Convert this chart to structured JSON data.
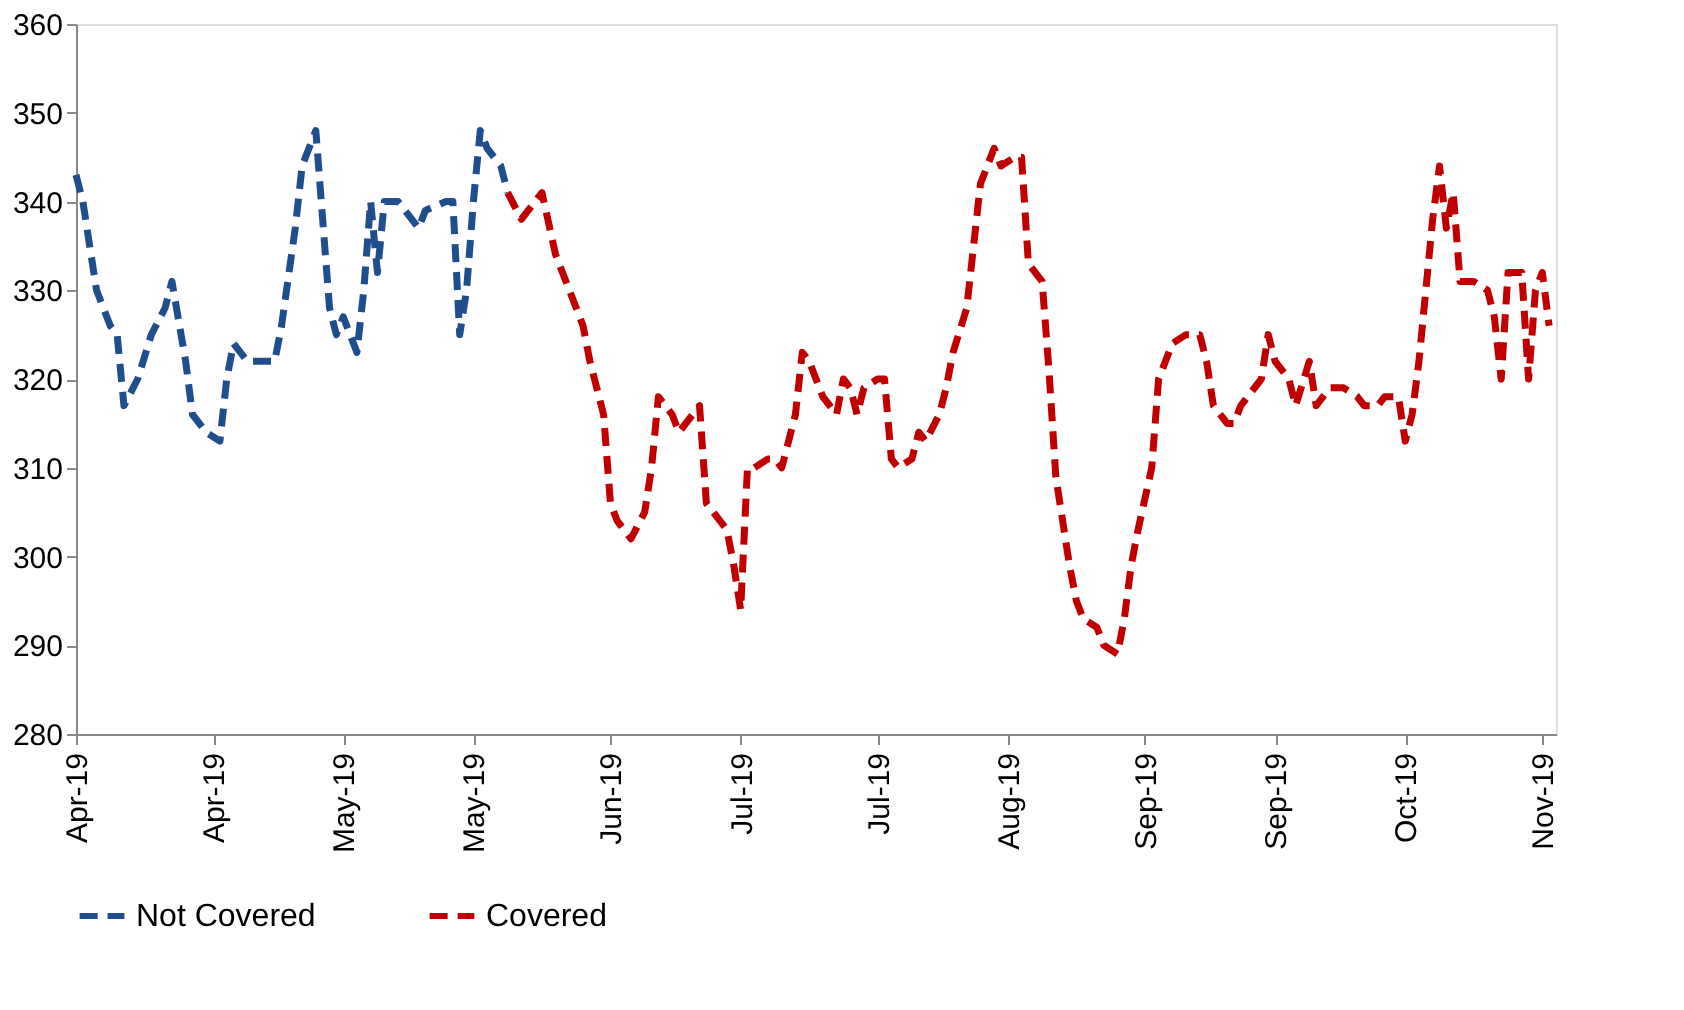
{
  "chart_data": {
    "type": "line",
    "line_style": "dashed",
    "marker": "none",
    "grid": false,
    "legend": "bottom",
    "xlim": [
      "2019-04-01",
      "2019-11-03"
    ],
    "ylim": [
      280,
      360
    ],
    "yticks": [
      280,
      290,
      300,
      310,
      320,
      330,
      340,
      350,
      360
    ],
    "xticks": [
      {
        "value": "2019-04-01",
        "label": "Apr-19"
      },
      {
        "value": "2019-04-21",
        "label": "Apr-19"
      },
      {
        "value": "2019-05-10",
        "label": "May-19"
      },
      {
        "value": "2019-05-29",
        "label": "May-19"
      },
      {
        "value": "2019-06-18",
        "label": "Jun-19"
      },
      {
        "value": "2019-07-07",
        "label": "Jul-19"
      },
      {
        "value": "2019-07-27",
        "label": "Jul-19"
      },
      {
        "value": "2019-08-15",
        "label": "Aug-19"
      },
      {
        "value": "2019-09-04",
        "label": "Sep-19"
      },
      {
        "value": "2019-09-23",
        "label": "Sep-19"
      },
      {
        "value": "2019-10-12",
        "label": "Oct-19"
      },
      {
        "value": "2019-11-01",
        "label": "Nov-19"
      }
    ],
    "series": [
      {
        "name": "Not Covered",
        "color": "#1f4e8c",
        "x": [
          "2019-04-01",
          "2019-04-02",
          "2019-04-04",
          "2019-04-06",
          "2019-04-07",
          "2019-04-08",
          "2019-04-10",
          "2019-04-12",
          "2019-04-14",
          "2019-04-15",
          "2019-04-17",
          "2019-04-18",
          "2019-04-20",
          "2019-04-22",
          "2019-04-23",
          "2019-04-24",
          "2019-04-26",
          "2019-04-28",
          "2019-04-30",
          "2019-05-01",
          "2019-05-03",
          "2019-05-04",
          "2019-05-06",
          "2019-05-08",
          "2019-05-09",
          "2019-05-10",
          "2019-05-12",
          "2019-05-13",
          "2019-05-14",
          "2019-05-15",
          "2019-05-16",
          "2019-05-18",
          "2019-05-21",
          "2019-05-22",
          "2019-05-25",
          "2019-05-26",
          "2019-05-27",
          "2019-05-28",
          "2019-05-29",
          "2019-05-30",
          "2019-05-31",
          "2019-06-02",
          "2019-06-03"
        ],
        "values": [
          343,
          340,
          330,
          326,
          325,
          317,
          320,
          325,
          328,
          331,
          322,
          316,
          314,
          313,
          320,
          324,
          322,
          322,
          322,
          326,
          337,
          344,
          348,
          328,
          325,
          327,
          323,
          330,
          340,
          332,
          340,
          340,
          337,
          339,
          340,
          340,
          325,
          330,
          340,
          348,
          346,
          344,
          341
        ]
      },
      {
        "name": "Covered",
        "color": "#c00000",
        "x": [
          "2019-06-03",
          "2019-06-05",
          "2019-06-06",
          "2019-06-08",
          "2019-06-10",
          "2019-06-12",
          "2019-06-14",
          "2019-06-15",
          "2019-06-17",
          "2019-06-18",
          "2019-06-19",
          "2019-06-21",
          "2019-06-23",
          "2019-06-24",
          "2019-06-25",
          "2019-06-27",
          "2019-06-28",
          "2019-06-30",
          "2019-07-01",
          "2019-07-02",
          "2019-07-03",
          "2019-07-05",
          "2019-07-06",
          "2019-07-07",
          "2019-07-08",
          "2019-07-09",
          "2019-07-11",
          "2019-07-12",
          "2019-07-13",
          "2019-07-15",
          "2019-07-16",
          "2019-07-17",
          "2019-07-18",
          "2019-07-19",
          "2019-07-21",
          "2019-07-22",
          "2019-07-23",
          "2019-07-24",
          "2019-07-25",
          "2019-07-27",
          "2019-07-28",
          "2019-07-29",
          "2019-07-30",
          "2019-08-01",
          "2019-08-02",
          "2019-08-03",
          "2019-08-05",
          "2019-08-06",
          "2019-08-07",
          "2019-08-09",
          "2019-08-10",
          "2019-08-11",
          "2019-08-13",
          "2019-08-14",
          "2019-08-16",
          "2019-08-17",
          "2019-08-18",
          "2019-08-20",
          "2019-08-21",
          "2019-08-22",
          "2019-08-24",
          "2019-08-25",
          "2019-08-26",
          "2019-08-28",
          "2019-08-29",
          "2019-08-31",
          "2019-09-01",
          "2019-09-02",
          "2019-09-03",
          "2019-09-05",
          "2019-09-06",
          "2019-09-08",
          "2019-09-10",
          "2019-09-12",
          "2019-09-13",
          "2019-09-14",
          "2019-09-16",
          "2019-09-17",
          "2019-09-18",
          "2019-09-21",
          "2019-09-22",
          "2019-09-23",
          "2019-09-25",
          "2019-09-26",
          "2019-09-28",
          "2019-09-29",
          "2019-10-01",
          "2019-10-02",
          "2019-10-03",
          "2019-10-05",
          "2019-10-06",
          "2019-10-08",
          "2019-10-09",
          "2019-10-11",
          "2019-10-12",
          "2019-10-13",
          "2019-10-14",
          "2019-10-16",
          "2019-10-17",
          "2019-10-18",
          "2019-10-19",
          "2019-10-20",
          "2019-10-22",
          "2019-10-24",
          "2019-10-25",
          "2019-10-26",
          "2019-10-27",
          "2019-10-28",
          "2019-10-29",
          "2019-10-30",
          "2019-10-31",
          "2019-11-01",
          "2019-11-02"
        ],
        "values": [
          341,
          338,
          339,
          341,
          334,
          330,
          326,
          322,
          316,
          306,
          304,
          302,
          305,
          310,
          318,
          316,
          314,
          316,
          317,
          306,
          305,
          303,
          299,
          294,
          310,
          310,
          311,
          311,
          310,
          316,
          323,
          322,
          320,
          318,
          316,
          320,
          319,
          316,
          319,
          320,
          320,
          311,
          310,
          311,
          314,
          313,
          316,
          319,
          323,
          328,
          335,
          342,
          346,
          344,
          345,
          345,
          333,
          331,
          321,
          309,
          299,
          295,
          293,
          292,
          290,
          289,
          293,
          299,
          303,
          310,
          320,
          324,
          325,
          325,
          322,
          317,
          315,
          315,
          317,
          320,
          325,
          322,
          320,
          317,
          322,
          317,
          319,
          319,
          319,
          318,
          317,
          317,
          318,
          318,
          313,
          316,
          322,
          338,
          344,
          337,
          341,
          331,
          331,
          330,
          327,
          320,
          332,
          332,
          332,
          320,
          330,
          332,
          326
        ]
      }
    ]
  }
}
